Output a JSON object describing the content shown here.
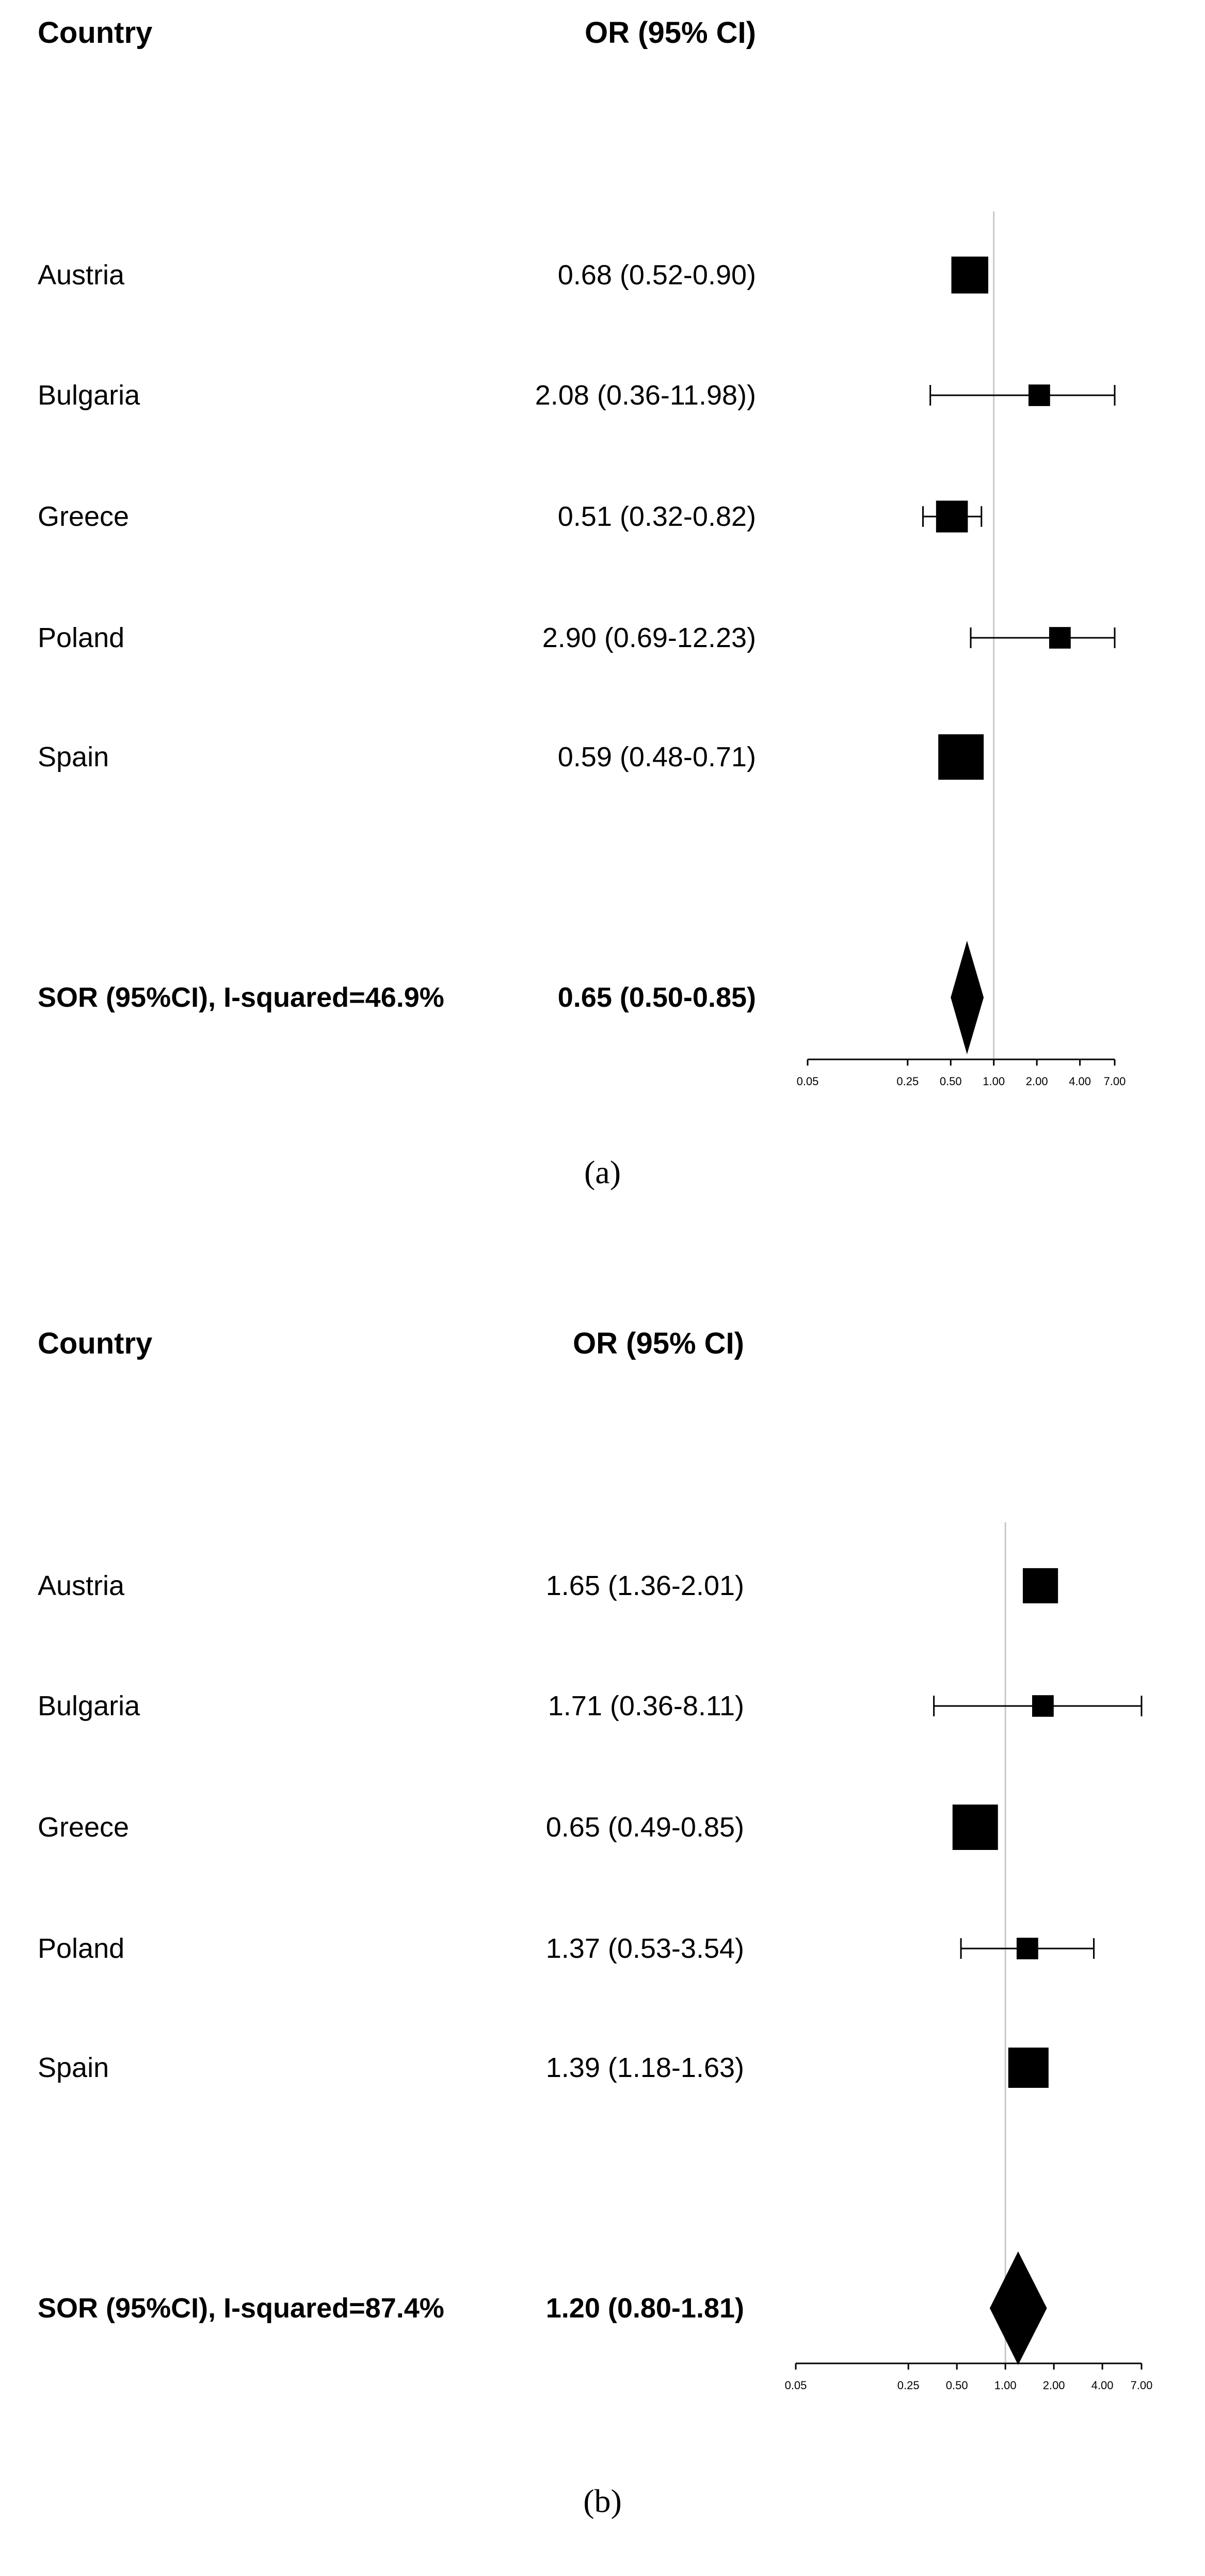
{
  "chart_data": [
    {
      "type": "forest",
      "caption": "(a)",
      "col_country": "Country",
      "col_or": "OR (95% CI)",
      "null_line": 1.0,
      "xlim": [
        0.05,
        7.0
      ],
      "ticks": [
        "0.05",
        "0.25",
        "0.50",
        "1.00",
        "2.00",
        "4.00",
        "7.00"
      ],
      "rows": [
        {
          "country": "Austria",
          "label": "0.68 (0.52-0.90)",
          "or": 0.68,
          "low": 0.52,
          "high": 0.9,
          "weight": 0.75
        },
        {
          "country": "Bulgaria",
          "label": "2.08 (0.36-11.98))",
          "or": 2.08,
          "low": 0.36,
          "high": 11.98,
          "weight": 0.3
        },
        {
          "country": "Greece",
          "label": "0.51 (0.32-0.82)",
          "or": 0.51,
          "low": 0.32,
          "high": 0.82,
          "weight": 0.6
        },
        {
          "country": "Poland",
          "label": "2.90 (0.69-12.23)",
          "or": 2.9,
          "low": 0.69,
          "high": 12.23,
          "weight": 0.3
        },
        {
          "country": "Spain",
          "label": "0.59 (0.48-0.71)",
          "or": 0.59,
          "low": 0.48,
          "high": 0.71,
          "weight": 1.0
        }
      ],
      "summary": {
        "label": "SOR (95%CI), I-squared=46.9%",
        "value": "0.65 (0.50-0.85)",
        "or": 0.65,
        "low": 0.5,
        "high": 0.85
      }
    },
    {
      "type": "forest",
      "caption": "(b)",
      "col_country": "Country",
      "col_or": "OR (95% CI)",
      "null_line": 1.0,
      "xlim": [
        0.05,
        7.0
      ],
      "ticks": [
        "0.05",
        "0.25",
        "0.50",
        "1.00",
        "2.00",
        "4.00",
        "7.00"
      ],
      "rows": [
        {
          "country": "Austria",
          "label": "1.65 (1.36-2.01)",
          "or": 1.65,
          "low": 1.36,
          "high": 2.01,
          "weight": 0.7
        },
        {
          "country": "Bulgaria",
          "label": "1.71 (0.36-8.11)",
          "or": 1.71,
          "low": 0.36,
          "high": 8.11,
          "weight": 0.3
        },
        {
          "country": "Greece",
          "label": "0.65 (0.49-0.85)",
          "or": 0.65,
          "low": 0.49,
          "high": 0.85,
          "weight": 1.0
        },
        {
          "country": "Poland",
          "label": "1.37 (0.53-3.54)",
          "or": 1.37,
          "low": 0.53,
          "high": 3.54,
          "weight": 0.3
        },
        {
          "country": "Spain",
          "label": "1.39 (1.18-1.63)",
          "or": 1.39,
          "low": 1.18,
          "high": 1.63,
          "weight": 0.85
        }
      ],
      "summary": {
        "label": "SOR (95%CI), I-squared=87.4%",
        "value": "1.20 (0.80-1.81)",
        "or": 1.2,
        "low": 0.8,
        "high": 1.81
      }
    }
  ]
}
